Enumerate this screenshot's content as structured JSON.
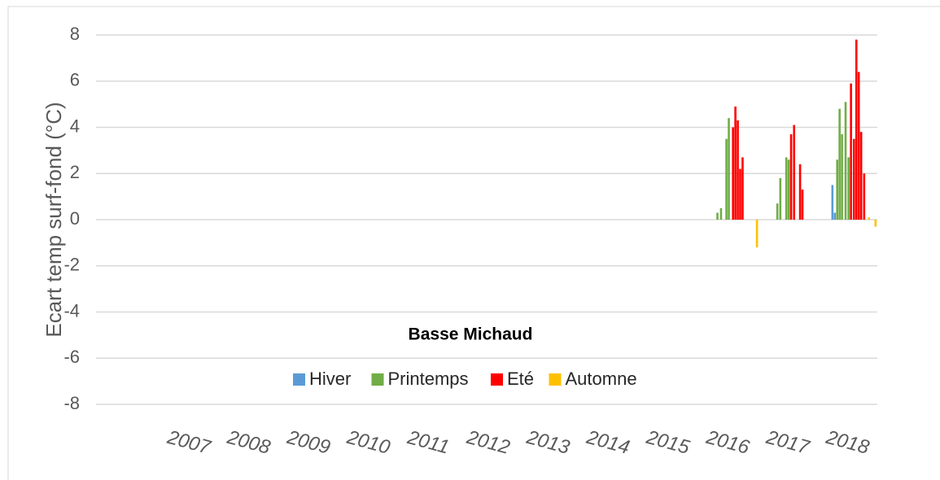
{
  "chart_data": {
    "type": "bar",
    "title": "Basse Michaud",
    "y_label": "Ecart temp surf-fond (°C)",
    "ylim": [
      -8,
      8
    ],
    "yticks": [
      -8,
      -6,
      -4,
      -2,
      0,
      2,
      4,
      6,
      8
    ],
    "xlim": [
      2007,
      2019
    ],
    "xticks": [
      2007,
      2008,
      2009,
      2010,
      2011,
      2012,
      2013,
      2014,
      2015,
      2016,
      2017,
      2018
    ],
    "grid": true,
    "series": [
      {
        "name": "Hiver",
        "color": "#5b9bd5",
        "x": [
          2018.25,
          2018.29
        ],
        "values": [
          1.5,
          0.3
        ]
      },
      {
        "name": "Printemps",
        "color": "#70ad47",
        "x": [
          2016.33,
          2016.39,
          2016.48,
          2016.52,
          2017.33,
          2017.38,
          2017.48,
          2017.52,
          2018.33,
          2018.37,
          2018.41,
          2018.47,
          2018.52
        ],
        "values": [
          0.3,
          0.5,
          3.5,
          4.4,
          0.7,
          1.8,
          2.7,
          2.6,
          2.6,
          4.8,
          3.7,
          5.1,
          2.7
        ]
      },
      {
        "name": "Eté",
        "color": "#ff0000",
        "x": [
          2016.59,
          2016.63,
          2016.67,
          2016.71,
          2016.75,
          2017.56,
          2017.61,
          2017.71,
          2017.75,
          2018.56,
          2018.61,
          2018.65,
          2018.69,
          2018.73,
          2018.78
        ],
        "values": [
          4.0,
          4.9,
          4.3,
          2.2,
          2.7,
          3.7,
          4.1,
          2.4,
          1.3,
          5.9,
          3.5,
          7.8,
          6.4,
          3.8,
          2.0
        ]
      },
      {
        "name": "Automne",
        "color": "#ffc000",
        "x": [
          2016.99,
          2018.86,
          2018.97
        ],
        "values": [
          -1.2,
          0.1,
          -0.3
        ]
      }
    ]
  }
}
